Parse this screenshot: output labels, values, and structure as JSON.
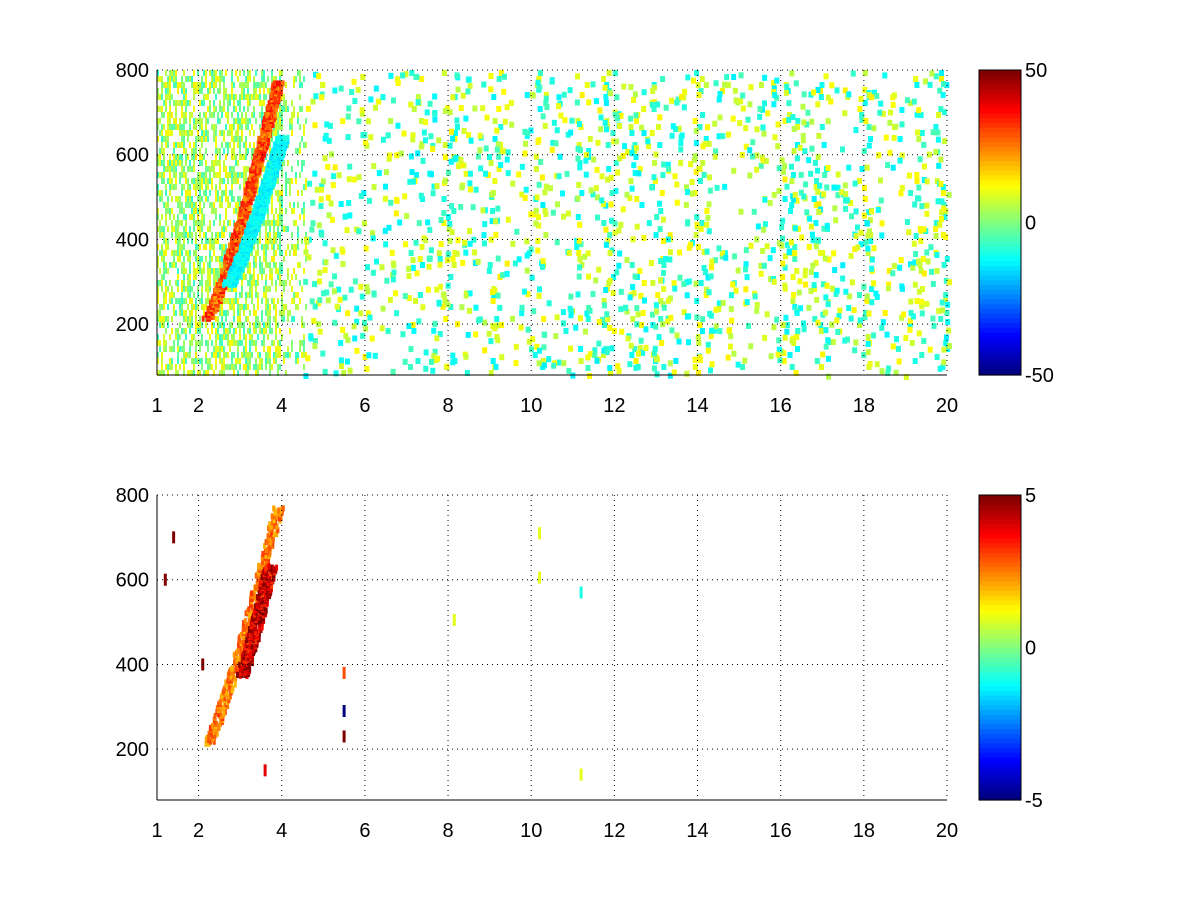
{
  "figure": {
    "background": "#ffffff",
    "colormap": "jet"
  },
  "chart_data": [
    {
      "type": "heatmap",
      "title": "",
      "xlabel": "",
      "ylabel": "",
      "xlim": [
        1,
        20
      ],
      "ylim": [
        80,
        800
      ],
      "grid": true,
      "x_ticks": [
        1,
        2,
        4,
        6,
        8,
        10,
        12,
        14,
        16,
        18,
        20
      ],
      "y_ticks": [
        200,
        400,
        600,
        800
      ],
      "colorbar": {
        "min": -50,
        "max": 50,
        "ticks": [
          -50,
          0,
          50
        ],
        "position": "right"
      },
      "features": [
        {
          "kind": "ridge",
          "x_start": 2.2,
          "x_end": 3.9,
          "y_start": 220,
          "y_end": 780,
          "value": 35
        },
        {
          "kind": "low-band",
          "x_start": 2.7,
          "x_end": 4.0,
          "y_start": 300,
          "y_end": 650,
          "value": -15
        }
      ],
      "noise_columns_x": [
        7.2,
        8.0,
        9.1,
        10.2,
        11.2,
        11.8,
        12.5,
        13.0,
        14.0,
        16.2,
        16.9,
        18.0,
        19.2,
        19.8
      ]
    },
    {
      "type": "heatmap",
      "title": "",
      "xlabel": "",
      "ylabel": "",
      "xlim": [
        1,
        20
      ],
      "ylim": [
        80,
        800
      ],
      "grid": true,
      "x_ticks": [
        1,
        2,
        4,
        6,
        8,
        10,
        12,
        14,
        16,
        18,
        20
      ],
      "y_ticks": [
        200,
        400,
        600,
        800
      ],
      "colorbar": {
        "min": -5,
        "max": 5,
        "ticks": [
          -5,
          0,
          5
        ],
        "position": "right"
      },
      "features": [
        {
          "kind": "ridge",
          "x_start": 2.2,
          "x_end": 3.9,
          "y_start": 220,
          "y_end": 780,
          "value": 3
        },
        {
          "kind": "high-core",
          "x_start": 3.0,
          "x_end": 3.7,
          "y_start": 380,
          "y_end": 640,
          "value": 5
        }
      ],
      "points": [
        {
          "x": 1.2,
          "y": 600,
          "value": 5
        },
        {
          "x": 1.4,
          "y": 700,
          "value": 5
        },
        {
          "x": 2.1,
          "y": 400,
          "value": 5
        },
        {
          "x": 5.5,
          "y": 380,
          "value": 3
        },
        {
          "x": 5.5,
          "y": 290,
          "value": -5
        },
        {
          "x": 5.5,
          "y": 230,
          "value": 5
        },
        {
          "x": 8.15,
          "y": 505,
          "value": 1
        },
        {
          "x": 10.2,
          "y": 710,
          "value": 1
        },
        {
          "x": 10.2,
          "y": 605,
          "value": 1
        },
        {
          "x": 11.2,
          "y": 570,
          "value": -1
        },
        {
          "x": 11.2,
          "y": 140,
          "value": 1
        },
        {
          "x": 3.6,
          "y": 150,
          "value": 4
        }
      ]
    }
  ]
}
